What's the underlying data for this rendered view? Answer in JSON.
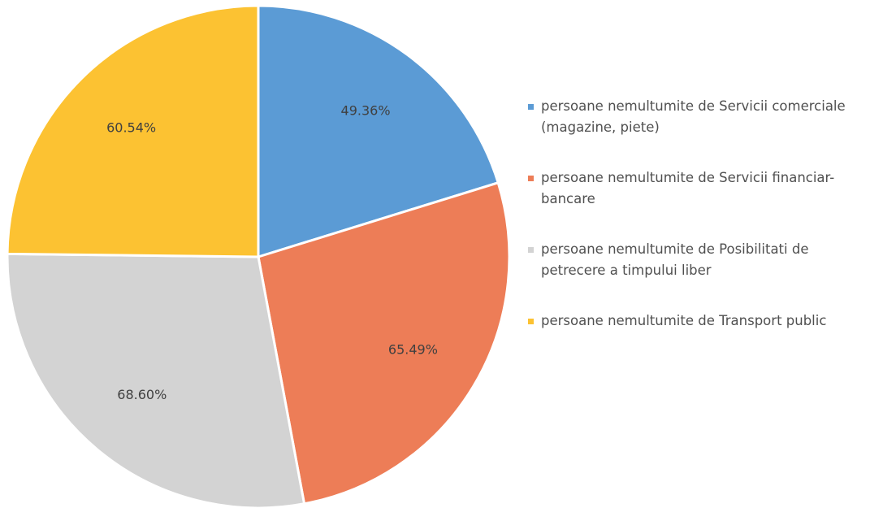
{
  "chart_data": {
    "type": "pie",
    "categories": [
      "persoane nemultumite de Servicii comerciale (magazine, piete)",
      "persoane nemultumite de Servicii financiar-bancare",
      "persoane nemultumite de Posibilitati de petrecere a timpului liber",
      "persoane nemultumite de Transport public"
    ],
    "values": [
      49.36,
      65.49,
      68.6,
      60.54
    ],
    "value_labels": [
      "49.36%",
      "65.49%",
      "68.60%",
      "60.54%"
    ],
    "colors": [
      "#5b9bd5",
      "#ed7d57",
      "#d3d3d3",
      "#fcc232"
    ],
    "legend": "right"
  }
}
